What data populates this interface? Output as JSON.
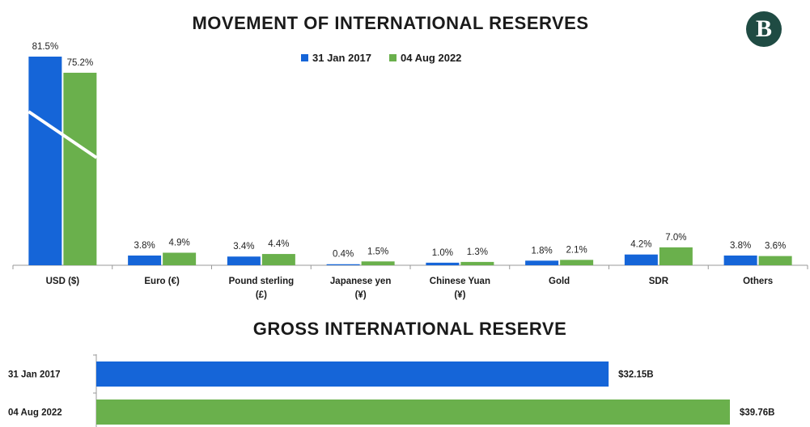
{
  "logo_text": "B",
  "chart_data": [
    {
      "type": "bar",
      "title": "MOVEMENT OF INTERNATIONAL RESERVES",
      "categories": [
        "USD ($)",
        "Euro (€)",
        "Pound sterling (£)",
        "Japanese yen (¥)",
        "Chinese Yuan (¥)",
        "Gold",
        "SDR",
        "Others"
      ],
      "category_lines": [
        [
          "USD ($)"
        ],
        [
          "Euro (€)"
        ],
        [
          "Pound sterling",
          "(£)"
        ],
        [
          "Japanese yen",
          "(¥)"
        ],
        [
          "Chinese Yuan",
          "(¥)"
        ],
        [
          "Gold"
        ],
        [
          "SDR"
        ],
        [
          "Others"
        ]
      ],
      "series": [
        {
          "name": "31 Jan 2017",
          "color": "#1565d8",
          "values": [
            81.5,
            3.8,
            3.4,
            0.4,
            1.0,
            1.8,
            4.2,
            3.8
          ],
          "labels": [
            "81.5%",
            "3.8%",
            "3.4%",
            "0.4%",
            "1.0%",
            "1.8%",
            "4.2%",
            "3.8%"
          ]
        },
        {
          "name": "04 Aug 2022",
          "color": "#6ab04c",
          "values": [
            75.2,
            4.9,
            4.4,
            1.5,
            1.3,
            2.1,
            7.0,
            3.6
          ],
          "labels": [
            "75.2%",
            "4.9%",
            "4.4%",
            "1.5%",
            "1.3%",
            "2.1%",
            "7.0%",
            "3.6%"
          ]
        }
      ],
      "legend_position": "top",
      "grid": false
    },
    {
      "type": "bar",
      "orientation": "horizontal",
      "title": "GROSS INTERNATIONAL RESERVE",
      "categories": [
        "31 Jan 2017",
        "04 Aug 2022"
      ],
      "values": [
        32.15,
        39.76
      ],
      "labels": [
        "$32.15B",
        "$39.76B"
      ],
      "colors": [
        "#1565d8",
        "#6ab04c"
      ],
      "grid": false
    }
  ]
}
